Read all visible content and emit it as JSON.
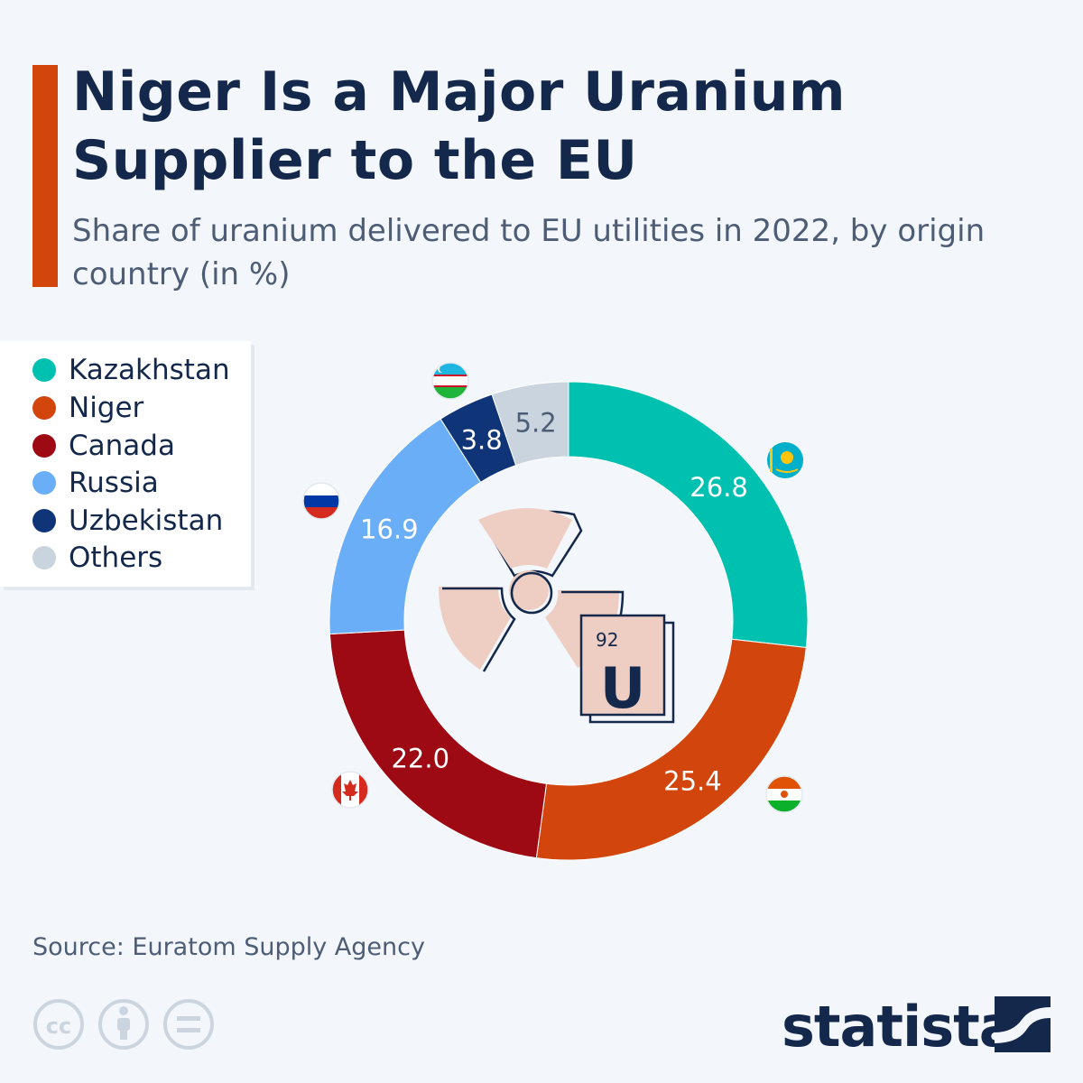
{
  "header": {
    "title": "Niger Is a Major Uranium Supplier to the EU",
    "subtitle": "Share of uranium delivered to EU utilities in 2022, by origin country (in %)"
  },
  "chart_data": {
    "type": "pie",
    "variant": "donut",
    "title": "Niger Is a Major Uranium Supplier to the EU",
    "subtitle": "Share of uranium delivered to EU utilities in 2022, by origin country (in %)",
    "categories": [
      "Kazakhstan",
      "Niger",
      "Canada",
      "Russia",
      "Uzbekistan",
      "Others"
    ],
    "values": [
      26.8,
      25.4,
      22.0,
      16.9,
      3.8,
      5.2
    ],
    "value_labels": [
      "26.8",
      "25.4",
      "22.0",
      "16.9",
      "3.8",
      "5.2"
    ],
    "colors": [
      "#00c0b0",
      "#d2460e",
      "#9e0a14",
      "#6aaef8",
      "#0f3478",
      "#c9d4de"
    ],
    "legend_position": "top-left",
    "start_angle_deg": 0,
    "direction": "clockwise"
  },
  "legend": {
    "items": [
      {
        "label": "Kazakhstan",
        "color": "#00c0b0"
      },
      {
        "label": "Niger",
        "color": "#d2460e"
      },
      {
        "label": "Canada",
        "color": "#9e0a14"
      },
      {
        "label": "Russia",
        "color": "#6aaef8"
      },
      {
        "label": "Uzbekistan",
        "color": "#0f3478"
      },
      {
        "label": "Others",
        "color": "#c9d4de"
      }
    ]
  },
  "center_graphic": {
    "icon": "radiation-icon",
    "element_tile": {
      "number": "92",
      "symbol": "U"
    }
  },
  "flags": [
    "kazakhstan-flag-icon",
    "niger-flag-icon",
    "canada-flag-icon",
    "russia-flag-icon",
    "uzbekistan-flag-icon"
  ],
  "footer": {
    "source": "Source: Euratom Supply Agency",
    "brand": "statista",
    "license_icons": [
      "cc-icon",
      "attribution-icon",
      "no-derivatives-icon"
    ]
  },
  "colors": {
    "background": "#f3f7fb",
    "accent": "#d2460e",
    "title": "#14284b"
  }
}
